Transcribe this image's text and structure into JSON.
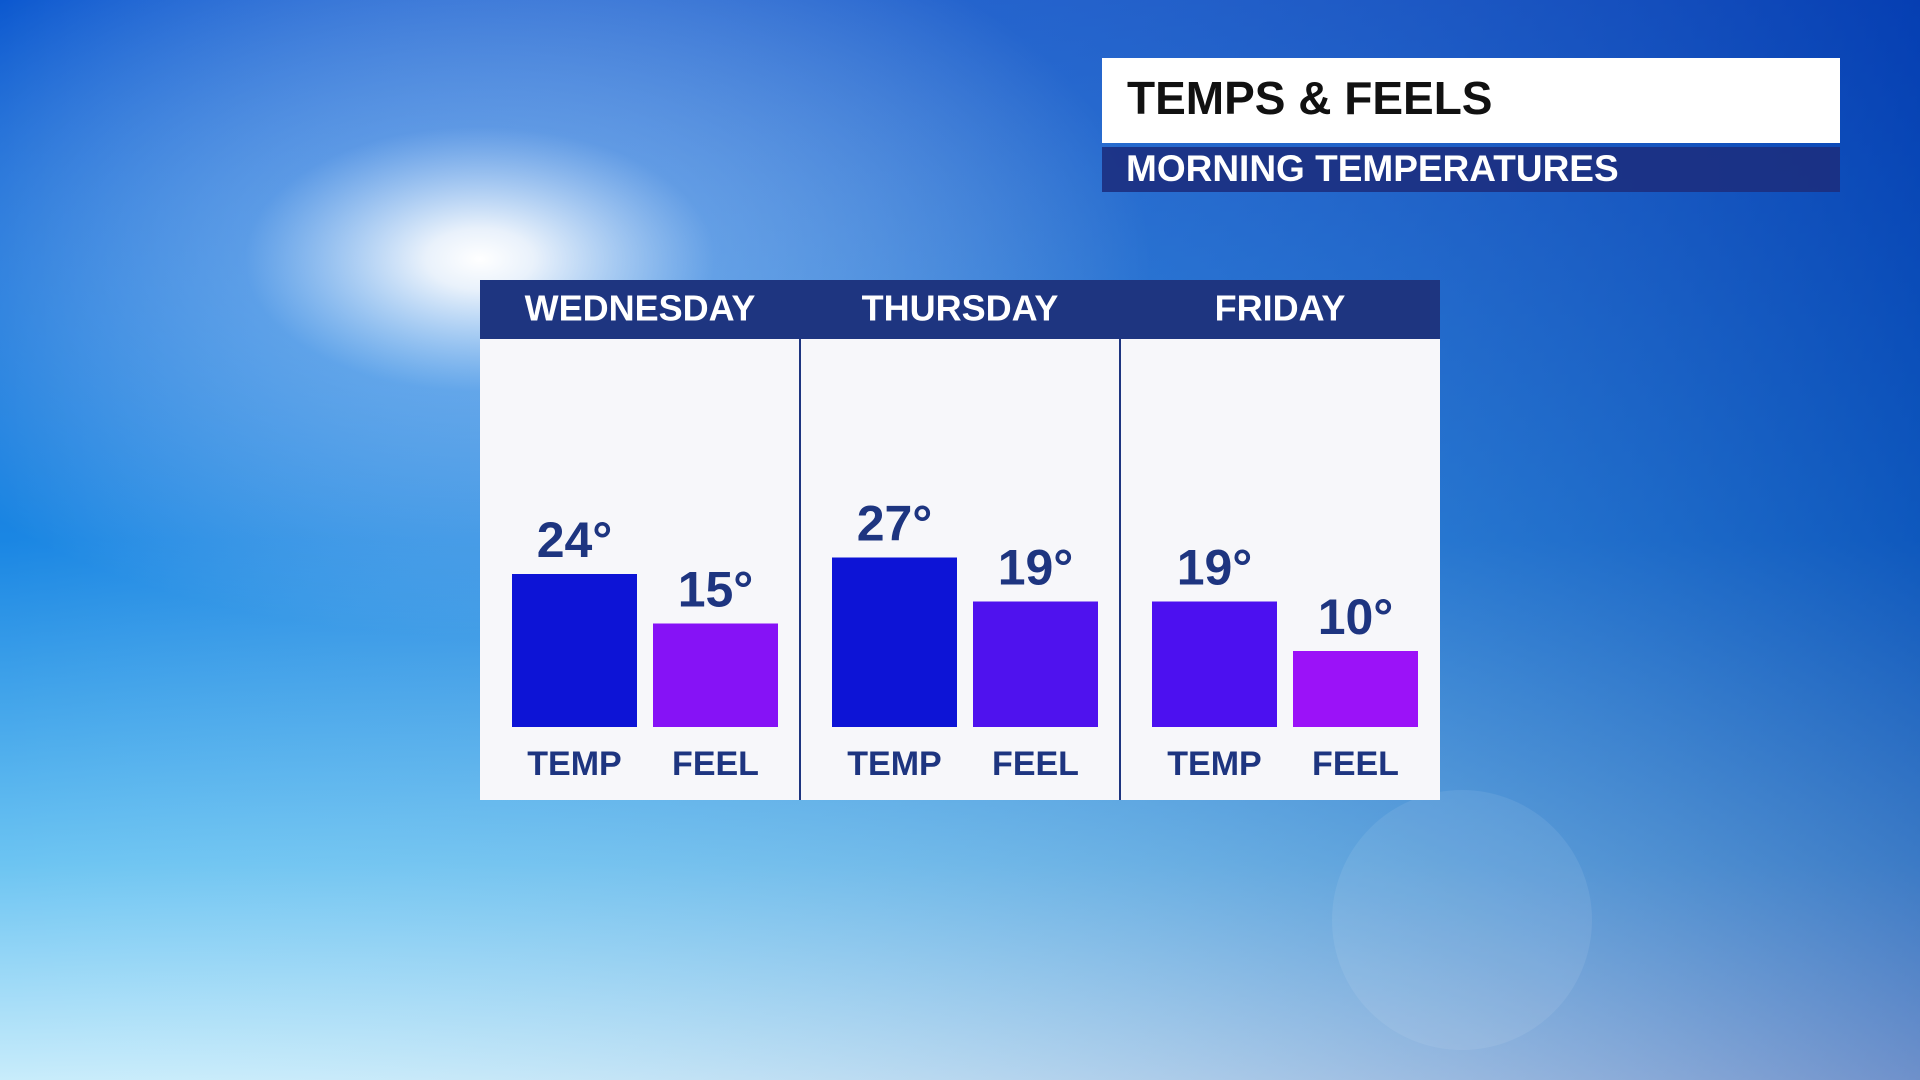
{
  "chart_data": {
    "type": "bar",
    "title": "TEMPS & FEELS",
    "subtitle": "MORNING TEMPERATURES",
    "groups": [
      {
        "name": "WEDNESDAY",
        "categories": [
          "TEMP",
          "FEEL"
        ],
        "values": [
          24,
          15
        ],
        "value_labels": [
          "24°",
          "15°"
        ],
        "colors": [
          "#0d14d6",
          "#8612f6"
        ]
      },
      {
        "name": "THURSDAY",
        "categories": [
          "TEMP",
          "FEEL"
        ],
        "values": [
          27,
          19
        ],
        "value_labels": [
          "27°",
          "19°"
        ],
        "colors": [
          "#0d14d6",
          "#4f12ee"
        ]
      },
      {
        "name": "FRIDAY",
        "categories": [
          "TEMP",
          "FEEL"
        ],
        "values": [
          19,
          10
        ],
        "value_labels": [
          "19°",
          "10°"
        ],
        "colors": [
          "#4c10f0",
          "#9b12f8"
        ]
      }
    ]
  }
}
